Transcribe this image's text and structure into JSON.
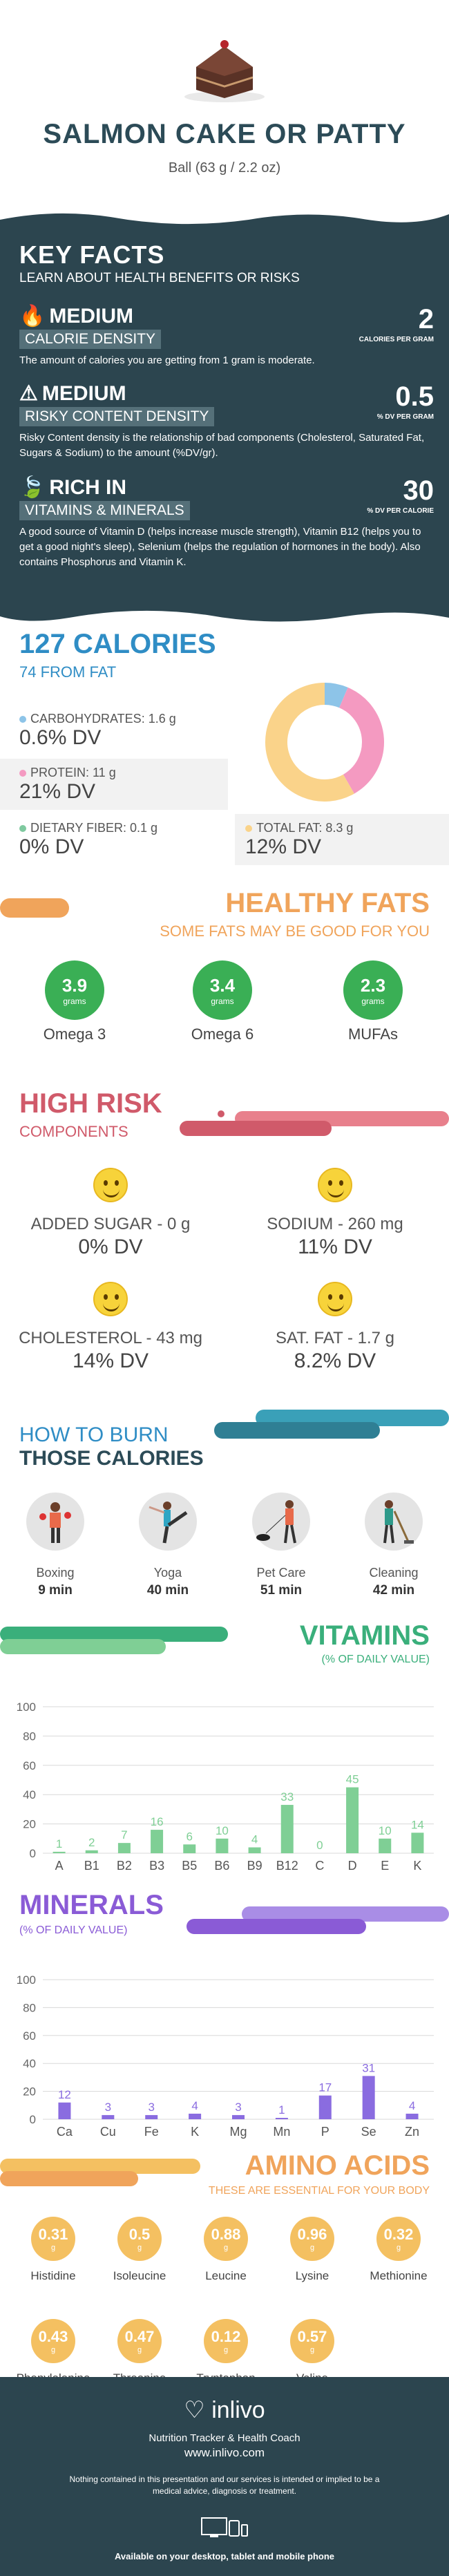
{
  "header": {
    "title": "SALMON CAKE OR PATTY",
    "serving": "Ball (63 g / 2.2 oz)"
  },
  "key_facts": {
    "title": "KEY FACTS",
    "subtitle": "LEARN ABOUT HEALTH BENEFITS OR RISKS",
    "calorie_density": {
      "level": "MEDIUM",
      "label": "CALORIE DENSITY",
      "value": "2",
      "unit": "CALORIES PER GRAM",
      "desc": "The amount of calories you are getting from 1 gram is moderate."
    },
    "risky_density": {
      "level": "MEDIUM",
      "label": "RISKY CONTENT DENSITY",
      "value": "0.5",
      "unit": "% DV PER GRAM",
      "desc": "Risky Content density is the relationship of bad components (Cholesterol, Saturated Fat, Sugars & Sodium) to the amount (%DV/gr)."
    },
    "rich_in": {
      "level": "RICH IN",
      "label": "VITAMINS & MINERALS",
      "value": "30",
      "unit": "% DV PER CALORIE",
      "desc": "A good source of Vitamin D (helps increase muscle strength), Vitamin B12 (helps you to get a good night's sleep), Selenium (helps the regulation of hormones in the body). Also contains Phosphorus and Vitamin K."
    }
  },
  "calories": {
    "title": "127 CALORIES",
    "from_fat": "74 FROM FAT",
    "carbs": {
      "label": "CARBOHYDRATES: 1.6 g",
      "dv": "0.6% DV"
    },
    "protein": {
      "label": "PROTEIN: 11 g",
      "dv": "21% DV"
    },
    "fiber": {
      "label": "DIETARY FIBER: 0.1 g",
      "dv": "0% DV"
    },
    "fat": {
      "label": "TOTAL FAT: 8.3 g",
      "dv": "12% DV"
    },
    "colors": {
      "carbs": "#8dc4e8",
      "protein": "#f49ac1",
      "fiber": "#7fc99f",
      "fat": "#fad38a"
    }
  },
  "healthy_fats": {
    "title": "HEALTHY FATS",
    "subtitle": "SOME FATS MAY BE GOOD FOR YOU",
    "items": [
      {
        "value": "3.9",
        "unit": "grams",
        "name": "Omega 3"
      },
      {
        "value": "3.4",
        "unit": "grams",
        "name": "Omega 6"
      },
      {
        "value": "2.3",
        "unit": "grams",
        "name": "MUFAs"
      }
    ]
  },
  "high_risk": {
    "title": "HIGH RISK",
    "subtitle": "COMPONENTS",
    "items": [
      {
        "label": "ADDED SUGAR - 0 g",
        "dv": "0% DV"
      },
      {
        "label": "SODIUM - 260 mg",
        "dv": "11% DV"
      },
      {
        "label": "CHOLESTEROL - 43 mg",
        "dv": "14% DV"
      },
      {
        "label": "SAT. FAT - 1.7 g",
        "dv": "8.2% DV"
      }
    ]
  },
  "burn": {
    "title1": "HOW TO BURN",
    "title2": "THOSE CALORIES",
    "items": [
      {
        "name": "Boxing",
        "time": "9 min"
      },
      {
        "name": "Yoga",
        "time": "40 min"
      },
      {
        "name": "Pet Care",
        "time": "51 min"
      },
      {
        "name": "Cleaning",
        "time": "42 min"
      }
    ]
  },
  "vitamins": {
    "title": "VITAMINS",
    "subtitle": "(% OF DAILY VALUE)"
  },
  "minerals": {
    "title": "MINERALS",
    "subtitle": "(% OF DAILY VALUE)"
  },
  "amino": {
    "title": "AMINO ACIDS",
    "subtitle": "THESE ARE ESSENTIAL FOR YOUR BODY",
    "unit": "g",
    "items": [
      {
        "value": "0.31",
        "name": "Histidine"
      },
      {
        "value": "0.5",
        "name": "Isoleucine"
      },
      {
        "value": "0.88",
        "name": "Leucine"
      },
      {
        "value": "0.96",
        "name": "Lysine"
      },
      {
        "value": "0.32",
        "name": "Methionine"
      },
      {
        "value": "0.43",
        "name": "Phenylalanine"
      },
      {
        "value": "0.47",
        "name": "Threonine"
      },
      {
        "value": "0.12",
        "name": "Tryptophan"
      },
      {
        "value": "0.57",
        "name": "Valine"
      }
    ]
  },
  "footer": {
    "brand": "inlivo",
    "tagline": "Nutrition Tracker & Health Coach",
    "url": "www.inlivo.com",
    "disclaimer": "Nothing contained in this presentation and our services is intended or implied to be a medical advice, diagnosis or treatment.",
    "available": "Available on your desktop, tablet and mobile phone"
  },
  "chart_data": [
    {
      "type": "pie",
      "title": "",
      "categories": [
        "Carbohydrates",
        "Protein",
        "Total Fat"
      ],
      "values": [
        6.4,
        35.3,
        58.3
      ],
      "colors": [
        "#8dc4e8",
        "#f49ac1",
        "#fad38a"
      ]
    },
    {
      "type": "bar",
      "title": "VITAMINS",
      "categories": [
        "A",
        "B1",
        "B2",
        "B3",
        "B5",
        "B6",
        "B9",
        "B12",
        "C",
        "D",
        "E",
        "K"
      ],
      "values": [
        1,
        2,
        7,
        16,
        6,
        10,
        4,
        33,
        0,
        45,
        10,
        14
      ],
      "ylim": [
        0,
        100
      ],
      "yticks": [
        0,
        20,
        40,
        60,
        80,
        100
      ],
      "color": "#7fcf95"
    },
    {
      "type": "bar",
      "title": "MINERALS",
      "categories": [
        "Ca",
        "Cu",
        "Fe",
        "K",
        "Mg",
        "Mn",
        "P",
        "Se",
        "Zn"
      ],
      "values": [
        12,
        3,
        3,
        4,
        3,
        1,
        17,
        31,
        4
      ],
      "ylim": [
        0,
        100
      ],
      "yticks": [
        0,
        20,
        40,
        60,
        80,
        100
      ],
      "color": "#8a6ce0"
    }
  ]
}
